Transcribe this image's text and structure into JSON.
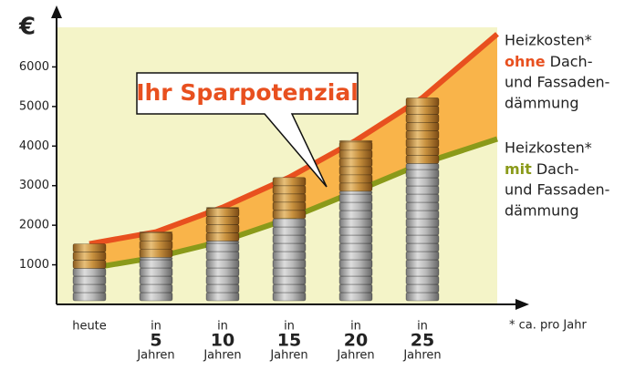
{
  "chart_data": {
    "type": "line",
    "y_label": "€",
    "annotation": "Ihr Sparpotenzial",
    "footnote": "* ca. pro Jahr",
    "categories": [
      [
        "heute"
      ],
      [
        "in",
        "5",
        "Jahren"
      ],
      [
        "in",
        "10",
        "Jahren"
      ],
      [
        "in",
        "15",
        "Jahren"
      ],
      [
        "in",
        "20",
        "Jahren"
      ],
      [
        "in",
        "25",
        "Jahren"
      ],
      null
    ],
    "series": [
      {
        "name": "Heizkosten*",
        "keyword": "ohne",
        "rest": [
          "Dach-",
          "und Fassaden-",
          "dämmung"
        ],
        "color": "#e8501f",
        "values": [
          1530,
          1830,
          2450,
          3210,
          4140,
          5220,
          6830
        ]
      },
      {
        "name": "Heizkosten*",
        "keyword": "mit",
        "rest": [
          "Dach-",
          "und Fassaden-",
          "dämmung"
        ],
        "color": "#8a9a1a",
        "values": [
          910,
          1190,
          1600,
          2170,
          2860,
          3560,
          4180
        ]
      }
    ],
    "area_color": "#f9b44a",
    "background": "#f4f4c8",
    "ylim": [
      0,
      7000
    ],
    "yticks": [
      1000,
      2000,
      3000,
      4000,
      5000,
      6000
    ]
  }
}
